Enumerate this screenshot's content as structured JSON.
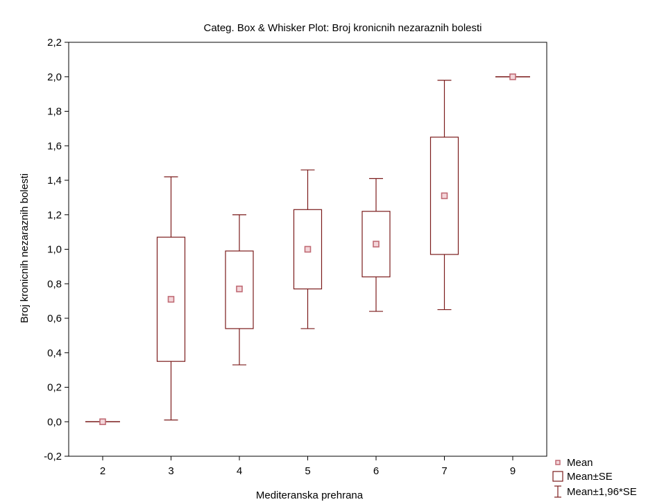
{
  "chart_data": {
    "type": "box",
    "title": "Categ. Box & Whisker Plot: Broj kronicnih nezaraznih bolesti",
    "xlabel": "Mediteranska prehrana",
    "ylabel": "Broj kronicnih nezaraznih bolesti",
    "categories": [
      "2",
      "3",
      "4",
      "5",
      "6",
      "7",
      "9"
    ],
    "ylim": [
      -0.2,
      2.2
    ],
    "yticks": [
      "-0,2",
      "0,0",
      "0,2",
      "0,4",
      "0,6",
      "0,8",
      "1,0",
      "1,2",
      "1,4",
      "1,6",
      "1,8",
      "2,0",
      "2,2"
    ],
    "yticks_values": [
      -0.2,
      0.0,
      0.2,
      0.4,
      0.6,
      0.8,
      1.0,
      1.2,
      1.4,
      1.6,
      1.8,
      2.0,
      2.2
    ],
    "grid": false,
    "legend_position": "bottom-right",
    "series": [
      {
        "category": "2",
        "mean": 0.0,
        "se_low": 0.0,
        "se_high": 0.0,
        "ci_low": 0.0,
        "ci_high": 0.0
      },
      {
        "category": "3",
        "mean": 0.71,
        "se_low": 0.35,
        "se_high": 1.07,
        "ci_low": 0.01,
        "ci_high": 1.42
      },
      {
        "category": "4",
        "mean": 0.77,
        "se_low": 0.54,
        "se_high": 0.99,
        "ci_low": 0.33,
        "ci_high": 1.2
      },
      {
        "category": "5",
        "mean": 1.0,
        "se_low": 0.77,
        "se_high": 1.23,
        "ci_low": 0.54,
        "ci_high": 1.46
      },
      {
        "category": "6",
        "mean": 1.03,
        "se_low": 0.84,
        "se_high": 1.22,
        "ci_low": 0.64,
        "ci_high": 1.41
      },
      {
        "category": "7",
        "mean": 1.31,
        "se_low": 0.97,
        "se_high": 1.65,
        "ci_low": 0.65,
        "ci_high": 1.98
      },
      {
        "category": "9",
        "mean": 2.0,
        "se_low": 2.0,
        "se_high": 2.0,
        "ci_low": 2.0,
        "ci_high": 2.0
      }
    ],
    "legend": [
      {
        "symbol": "mean-marker",
        "label": "Mean"
      },
      {
        "symbol": "box",
        "label": "Mean±SE"
      },
      {
        "symbol": "whisker",
        "label": "Mean±1,96*SE"
      }
    ],
    "colors": {
      "box": "#7a1a1a",
      "mean_marker": "#c06a74",
      "axis": "#000000"
    }
  }
}
